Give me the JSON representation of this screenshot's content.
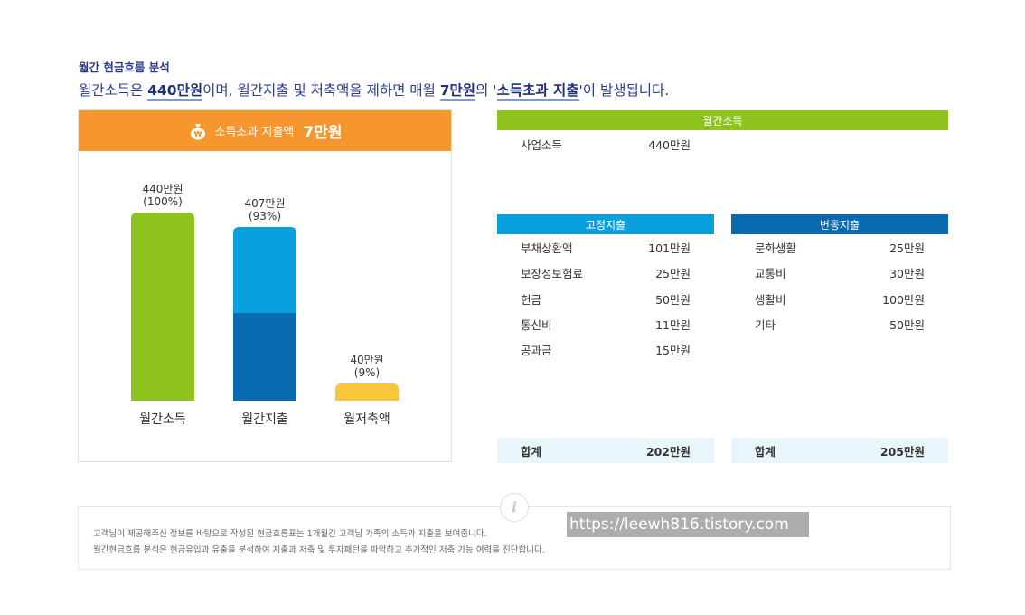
{
  "section_title": "월간 현금흐름 분석",
  "headline": {
    "p1": "월간소득은 ",
    "income": "440만원",
    "p2": "이며, 월간지출 및 저축액을 제하면 매월 ",
    "surplus": "7만원",
    "p3": "의 '",
    "highlight": "소득초과 지출",
    "p4": "'이 발생됩니다."
  },
  "chart_header": {
    "label": "소득초과 지출액",
    "value": "7만원",
    "icon": "money-bag-icon"
  },
  "chart_data": {
    "type": "bar",
    "categories": [
      "월간소득",
      "월간지출",
      "월저축액"
    ],
    "values": [
      440,
      407,
      40
    ],
    "labels": [
      "440만원",
      "407만원",
      "40만원"
    ],
    "percents": [
      "(100%)",
      "(93%)",
      "(9%)"
    ],
    "stacked_split": {
      "월간지출": [
        202,
        205
      ]
    },
    "colors": {
      "월간소득": "#8dc21f",
      "월간지출_top": "#0aa0e0",
      "월간지출_bottom": "#0a6ab0",
      "월저축액": "#f7c63a"
    },
    "ylim": [
      0,
      440
    ]
  },
  "income_table": {
    "header": "월간소득",
    "color": "#8dc21f",
    "rows": [
      {
        "name": "사업소득",
        "amount": "440만원"
      }
    ]
  },
  "fixed_table": {
    "header": "고정지출",
    "color": "#0aa0e0",
    "rows": [
      {
        "name": "부채상환액",
        "amount": "101만원"
      },
      {
        "name": "보장성보험료",
        "amount": "25만원"
      },
      {
        "name": "헌금",
        "amount": "50만원"
      },
      {
        "name": "통신비",
        "amount": "11만원"
      },
      {
        "name": "공과금",
        "amount": "15만원"
      }
    ],
    "total_label": "합계",
    "total": "202만원"
  },
  "variable_table": {
    "header": "변동지출",
    "color": "#0a6ab0",
    "rows": [
      {
        "name": "문화생활",
        "amount": "25만원"
      },
      {
        "name": "교통비",
        "amount": "30만원"
      },
      {
        "name": "생활비",
        "amount": "100만원"
      },
      {
        "name": "기타",
        "amount": "50만원"
      }
    ],
    "total_label": "합계",
    "total": "205만원"
  },
  "info": {
    "icon": "info-icon",
    "line1": "고객님이 제공해주신 정보를 바탕으로 작성된 현금흐름표는 1개월간 고객님 가족의 소득과 지출을 보여줍니다.",
    "line2": "월간현금흐름 분석은 현금유입과 유출을 분석하여 지출과 저축 및 투자패턴을 파악하고 추가적인 저축 가능 여력을 진단합니다."
  },
  "watermark": "https://leewh816.tistory.com"
}
